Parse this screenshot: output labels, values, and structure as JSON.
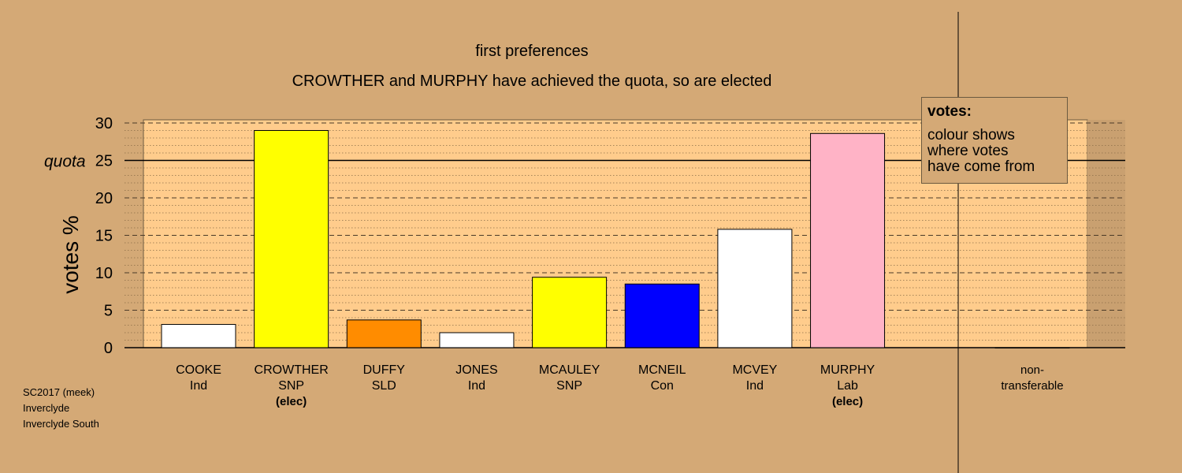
{
  "chart_data": {
    "type": "bar",
    "title": "first preferences",
    "subtitle": "CROWTHER and MURPHY have achieved the quota, so are elected",
    "ylabel": "votes %",
    "quota_label": "quota",
    "quota": 25,
    "ylim": [
      0,
      30
    ],
    "yticks": [
      0,
      5,
      10,
      15,
      20,
      25,
      30
    ],
    "grid": true,
    "categories": [
      {
        "name": "COOKE",
        "party": "Ind",
        "elected": ""
      },
      {
        "name": "CROWTHER",
        "party": "SNP",
        "elected": "(elec)"
      },
      {
        "name": "DUFFY",
        "party": "SLD",
        "elected": ""
      },
      {
        "name": "JONES",
        "party": "Ind",
        "elected": ""
      },
      {
        "name": "MCAULEY",
        "party": "SNP",
        "elected": ""
      },
      {
        "name": "MCNEIL",
        "party": "Con",
        "elected": ""
      },
      {
        "name": "MCVEY",
        "party": "Ind",
        "elected": ""
      },
      {
        "name": "MURPHY",
        "party": "Lab",
        "elected": "(elec)"
      }
    ],
    "values": [
      3.1,
      29.0,
      3.7,
      2.0,
      9.4,
      8.5,
      15.8,
      28.6
    ],
    "colors": [
      "#ffffff",
      "#ffff00",
      "#ff8c00",
      "#ffffff",
      "#ffff00",
      "#0000ff",
      "#ffffff",
      "#ffb3c6"
    ],
    "nontransferable": {
      "label": "non-\ntransferable",
      "value": 0
    },
    "legend": {
      "title": "votes:",
      "lines": [
        "colour shows",
        "where votes",
        "have come from"
      ],
      "placement": "top-right"
    }
  },
  "caption": [
    "SC2017 (meek)",
    "Inverclyde",
    "Inverclyde South"
  ]
}
